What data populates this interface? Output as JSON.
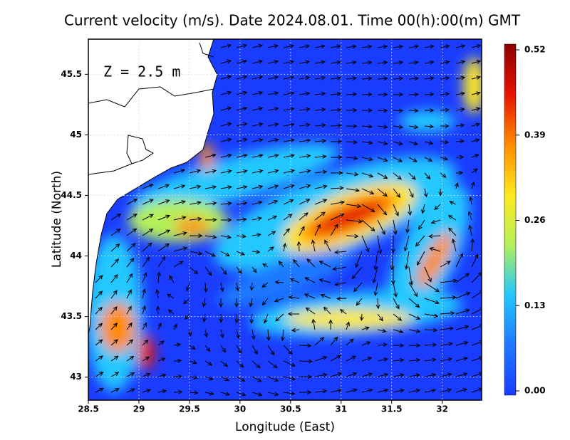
{
  "chart_data": {
    "type": "vector-field",
    "title": "Current velocity (m/s). Date 2024.08.01. Time 00(h):00(m) GMT",
    "annotation": "Z = 2.5 m",
    "x_label": "Longitude (East)",
    "y_label": "Latitude (North)",
    "xlim": [
      28.5,
      32.39
    ],
    "ylim": [
      42.81,
      45.79
    ],
    "xticks": [
      28.5,
      29,
      29.5,
      30,
      30.5,
      31,
      31.5,
      32
    ],
    "yticks": [
      43,
      43.5,
      44,
      44.5,
      45,
      45.5
    ],
    "grid": true,
    "colorbar": {
      "lim": [
        0,
        0.52
      ],
      "ticks": [
        {
          "value": 0,
          "label": "0.00"
        },
        0.13,
        0.26,
        0.39,
        0.52
      ],
      "colors": [
        "#1a3cff",
        "#1e78ff",
        "#22c8ff",
        "#b4f05a",
        "#ffe81e",
        "#ff8c00",
        "#e61400",
        "#8c0000"
      ]
    }
  }
}
